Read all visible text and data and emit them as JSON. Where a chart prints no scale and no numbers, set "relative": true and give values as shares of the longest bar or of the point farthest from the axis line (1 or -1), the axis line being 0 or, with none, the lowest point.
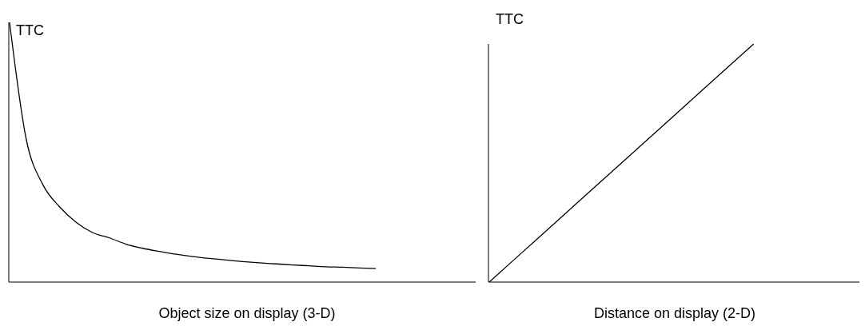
{
  "chart_data": [
    {
      "type": "line",
      "relative": true,
      "xlabel": "Object size on display (3-D)",
      "ylabel": "TTC",
      "color": "#000000",
      "categories": [
        null,
        null,
        null,
        null,
        null,
        null,
        null,
        null,
        null,
        null,
        null,
        null,
        null,
        null,
        null,
        null,
        null,
        null,
        null,
        null,
        null,
        null,
        null,
        null,
        null,
        null,
        null,
        null,
        null
      ],
      "values": [
        1.0,
        0.55,
        0.375,
        0.29,
        0.23,
        0.19,
        0.17,
        0.146,
        0.13,
        0.118,
        0.107,
        0.098,
        0.091,
        0.085,
        0.079,
        0.074,
        0.07,
        0.066,
        0.0625,
        0.059,
        0.057,
        0.054,
        0.052,
        null,
        null,
        null,
        null,
        null,
        null
      ]
    },
    {
      "type": "line",
      "relative": true,
      "xlabel": "Distance on display (2-D)",
      "ylabel": "TTC",
      "color": "#000000",
      "categories": [
        null,
        null,
        null,
        null,
        null,
        null,
        null,
        null
      ],
      "values": [
        0,
        0.2,
        0.4,
        0.6,
        0.8,
        1,
        null,
        null
      ]
    }
  ]
}
